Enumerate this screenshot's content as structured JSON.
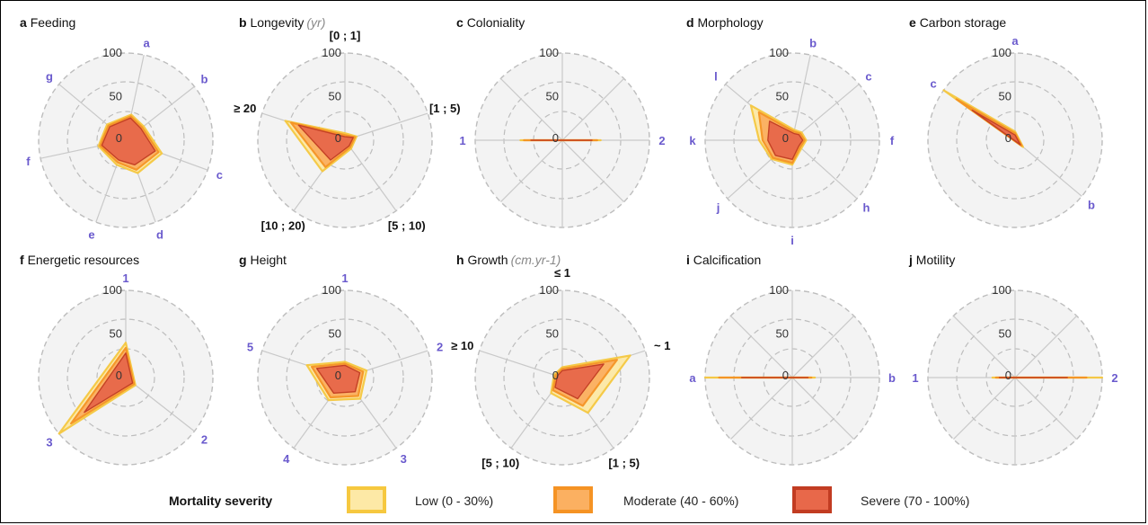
{
  "legend": {
    "title": "Mortality severity",
    "items": [
      {
        "label": "Low (0 - 30%)",
        "fill": "#fde9a6",
        "stroke": "#f6c83f"
      },
      {
        "label": "Moderate (40 - 60%)",
        "fill": "#fbb061",
        "stroke": "#f59324"
      },
      {
        "label": "Severe (70 - 100%)",
        "fill": "#e8684a",
        "stroke": "#c23c22"
      }
    ]
  },
  "chart_data": [
    {
      "id": "a",
      "type": "radar",
      "title": "Feeding",
      "unit": "",
      "rticks": [
        "0",
        "50",
        "100"
      ],
      "rlim": [
        0,
        100
      ],
      "categories": [
        "a",
        "b",
        "c",
        "d",
        "e",
        "f",
        "g"
      ],
      "label_style": "letter",
      "series": [
        {
          "name": "Low (0 - 30%)",
          "values": [
            30,
            26,
            44,
            40,
            30,
            32,
            28
          ]
        },
        {
          "name": "Moderate (40 - 60%)",
          "values": [
            28,
            24,
            40,
            36,
            27,
            30,
            26
          ]
        },
        {
          "name": "Severe (70 - 100%)",
          "values": [
            26,
            22,
            36,
            30,
            24,
            28,
            24
          ]
        }
      ]
    },
    {
      "id": "b",
      "type": "radar",
      "title": "Longevity",
      "unit": "(yr)",
      "rticks": [
        "0",
        "50",
        "100"
      ],
      "rlim": [
        0,
        100
      ],
      "categories": [
        "[0 ; 1]",
        "[1 ; 5)",
        "[5 ; 10)",
        "[10 ; 20)",
        "≥ 20"
      ],
      "label_style": "bold",
      "series": [
        {
          "name": "Low (0 - 30%)",
          "values": [
            8,
            14,
            12,
            44,
            72
          ]
        },
        {
          "name": "Moderate (40 - 60%)",
          "values": [
            6,
            12,
            10,
            38,
            65
          ]
        },
        {
          "name": "Severe (70 - 100%)",
          "values": [
            4,
            10,
            8,
            28,
            56
          ]
        }
      ]
    },
    {
      "id": "c",
      "type": "radar",
      "title": "Coloniality",
      "unit": "",
      "rticks": [
        "0",
        "50",
        "100"
      ],
      "rlim": [
        0,
        100
      ],
      "categories": [
        "1",
        "2"
      ],
      "label_style": "num",
      "series": [
        {
          "name": "Low (0 - 30%)",
          "values": [
            48,
            44
          ]
        },
        {
          "name": "Moderate (40 - 60%)",
          "values": [
            44,
            40
          ]
        },
        {
          "name": "Severe (70 - 100%)",
          "values": [
            36,
            34
          ]
        }
      ]
    },
    {
      "id": "d",
      "type": "radar",
      "title": "Morphology",
      "unit": "",
      "rticks": [
        "0",
        "50",
        "100"
      ],
      "rlim": [
        0,
        100
      ],
      "categories": [
        "b",
        "c",
        "f",
        "h",
        "i",
        "j",
        "k",
        "l"
      ],
      "label_style": "letter",
      "series": [
        {
          "name": "Low (0 - 30%)",
          "values": [
            12,
            14,
            16,
            14,
            28,
            32,
            38,
            62
          ]
        },
        {
          "name": "Moderate (40 - 60%)",
          "values": [
            10,
            12,
            14,
            12,
            26,
            30,
            34,
            50
          ]
        },
        {
          "name": "Severe (70 - 100%)",
          "values": [
            8,
            10,
            12,
            10,
            22,
            26,
            28,
            34
          ]
        }
      ]
    },
    {
      "id": "e",
      "type": "radar",
      "title": "Carbon storage",
      "unit": "",
      "rticks": [
        "0",
        "50",
        "100"
      ],
      "rlim": [
        0,
        100
      ],
      "categories": [
        "a",
        "b",
        "c"
      ],
      "label_style": "letter",
      "series": [
        {
          "name": "Low (0 - 30%)",
          "values": [
            10,
            12,
            100
          ]
        },
        {
          "name": "Moderate (40 - 60%)",
          "values": [
            8,
            10,
            82
          ]
        },
        {
          "name": "Severe (70 - 100%)",
          "values": [
            6,
            8,
            60
          ]
        }
      ]
    },
    {
      "id": "f",
      "type": "radar",
      "title": "Energetic resources",
      "unit": "",
      "rticks": [
        "0",
        "50",
        "100"
      ],
      "rlim": [
        0,
        100
      ],
      "categories": [
        "1",
        "2",
        "3"
      ],
      "label_style": "num",
      "series": [
        {
          "name": "Low (0 - 30%)",
          "values": [
            40,
            14,
            100
          ]
        },
        {
          "name": "Moderate (40 - 60%)",
          "values": [
            34,
            12,
            82
          ]
        },
        {
          "name": "Severe (70 - 100%)",
          "values": [
            28,
            10,
            62
          ]
        }
      ]
    },
    {
      "id": "g",
      "type": "radar",
      "title": "Height",
      "unit": "",
      "rticks": [
        "0",
        "50",
        "100"
      ],
      "rlim": [
        0,
        100
      ],
      "categories": [
        "1",
        "2",
        "3",
        "4",
        "5"
      ],
      "label_style": "num",
      "series": [
        {
          "name": "Low (0 - 30%)",
          "values": [
            18,
            26,
            30,
            32,
            46
          ]
        },
        {
          "name": "Moderate (40 - 60%)",
          "values": [
            16,
            22,
            26,
            28,
            40
          ]
        },
        {
          "name": "Severe (70 - 100%)",
          "values": [
            14,
            18,
            20,
            22,
            34
          ]
        }
      ]
    },
    {
      "id": "h",
      "type": "radar",
      "title": "Growth",
      "unit": "(cm.yr-1)",
      "rticks": [
        "0",
        "50",
        "100"
      ],
      "rlim": [
        0,
        100
      ],
      "categories": [
        "≤ 1",
        "~ 1",
        "[1 ; 5)",
        "[5 ; 10)",
        "≥ 10"
      ],
      "label_style": "bold",
      "series": [
        {
          "name": "Low (0 - 30%)",
          "values": [
            12,
            82,
            50,
            22,
            10
          ]
        },
        {
          "name": "Moderate (40 - 60%)",
          "values": [
            10,
            66,
            40,
            18,
            8
          ]
        },
        {
          "name": "Severe (70 - 100%)",
          "values": [
            8,
            50,
            30,
            14,
            6
          ]
        }
      ]
    },
    {
      "id": "i",
      "type": "radar",
      "title": "Calcification",
      "unit": "",
      "rticks": [
        "0",
        "50",
        "100"
      ],
      "rlim": [
        0,
        100
      ],
      "categories": [
        "a",
        "b"
      ],
      "label_style": "letter",
      "series": [
        {
          "name": "Low (0 - 30%)",
          "values": [
            100,
            26
          ]
        },
        {
          "name": "Moderate (40 - 60%)",
          "values": [
            84,
            22
          ]
        },
        {
          "name": "Severe (70 - 100%)",
          "values": [
            58,
            18
          ]
        }
      ]
    },
    {
      "id": "j",
      "type": "radar",
      "title": "Motility",
      "unit": "",
      "rticks": [
        "0",
        "50",
        "100"
      ],
      "rlim": [
        0,
        100
      ],
      "categories": [
        "1",
        "2"
      ],
      "label_style": "num",
      "series": [
        {
          "name": "Low (0 - 30%)",
          "values": [
            26,
            100
          ]
        },
        {
          "name": "Moderate (40 - 60%)",
          "values": [
            22,
            82
          ]
        },
        {
          "name": "Severe (70 - 100%)",
          "values": [
            18,
            60
          ]
        }
      ]
    }
  ]
}
